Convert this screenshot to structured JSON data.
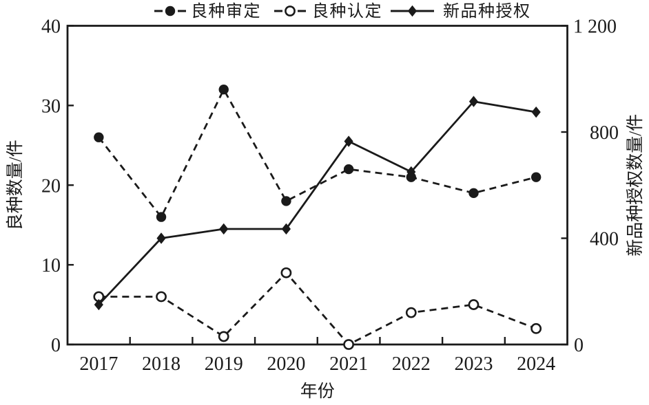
{
  "figure": {
    "background": "#ffffff",
    "ink": "#1a1a1a"
  },
  "chart_data": {
    "type": "line",
    "title": "",
    "xlabel": "年份",
    "categories": [
      "2017",
      "2018",
      "2019",
      "2020",
      "2021",
      "2022",
      "2023",
      "2024"
    ],
    "left_axis": {
      "label": "良种数量/件",
      "range": [
        0,
        40
      ],
      "ticks": [
        0,
        10,
        20,
        30,
        40
      ],
      "tick_labels": [
        "0",
        "10",
        "20",
        "30",
        "40"
      ]
    },
    "right_axis": {
      "label": "新品种授权数量/件",
      "range": [
        0,
        1200
      ],
      "ticks": [
        0,
        400,
        800,
        1200
      ],
      "tick_labels": [
        "0",
        "400",
        "800",
        "1 200"
      ]
    },
    "series": [
      {
        "name": "良种审定",
        "axis": "left",
        "line_style": "dashed",
        "marker": "filled-circle",
        "values": [
          26,
          16,
          32,
          18,
          22,
          21,
          19,
          21
        ]
      },
      {
        "name": "良种认定",
        "axis": "left",
        "line_style": "dashed",
        "marker": "open-circle",
        "values": [
          6,
          6,
          1,
          9,
          0,
          4,
          5,
          2
        ]
      },
      {
        "name": "新品种授权",
        "axis": "right",
        "line_style": "solid",
        "marker": "filled-diamond",
        "values": [
          150,
          400,
          435,
          435,
          765,
          650,
          915,
          875
        ]
      }
    ],
    "legend_position": "top-center",
    "grid": false
  }
}
